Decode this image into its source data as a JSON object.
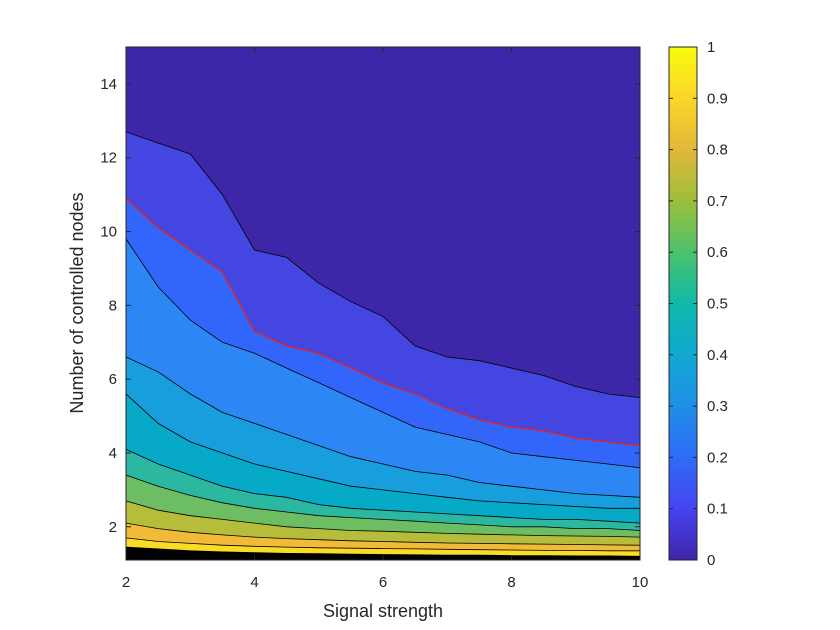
{
  "chart_data": {
    "type": "contour",
    "xlabel": "Signal strength",
    "ylabel": "Number of controlled nodes",
    "xlim": [
      2,
      10
    ],
    "ylim": [
      1.1,
      15
    ],
    "x_ticks": [
      2,
      4,
      6,
      8,
      10
    ],
    "y_ticks": [
      2,
      4,
      6,
      8,
      10,
      12,
      14
    ],
    "colorbar": {
      "range": [
        0,
        1
      ],
      "ticks": [
        0,
        0.1,
        0.2,
        0.3,
        0.4,
        0.5,
        0.6,
        0.7,
        0.8,
        0.9,
        1
      ],
      "tick_labels": [
        "0",
        "0.1",
        "0.2",
        "0.3",
        "0.4",
        "0.5",
        "0.6",
        "0.7",
        "0.8",
        "0.9",
        "1"
      ],
      "colormap": "parula"
    },
    "contour_fills": [
      "#3e26a8",
      "#4346e0",
      "#3266fb",
      "#2c87f5",
      "#189ddd",
      "#06aac6",
      "#2bb7a0",
      "#6dbe63",
      "#b6bd3a",
      "#f1ba38",
      "#f9dc26"
    ],
    "highlight_color": "#d9262d",
    "sample_x": [
      2,
      2.5,
      3,
      3.5,
      4,
      4.5,
      5,
      5.5,
      6,
      6.5,
      7,
      7.5,
      8,
      8.5,
      9,
      9.5,
      10
    ],
    "contours": [
      {
        "level": 0.05,
        "y": [
          12.7,
          12.4,
          12.1,
          11.0,
          9.5,
          9.3,
          8.6,
          8.1,
          7.7,
          6.9,
          6.6,
          6.5,
          6.3,
          6.1,
          5.8,
          5.6,
          5.5
        ]
      },
      {
        "level": 0.1,
        "y": [
          10.9,
          10.1,
          9.5,
          8.9,
          7.3,
          6.9,
          6.7,
          6.3,
          5.9,
          5.6,
          5.2,
          4.9,
          4.7,
          4.6,
          4.4,
          4.3,
          4.2
        ]
      },
      {
        "level": 0.15,
        "y": [
          9.8,
          8.5,
          7.6,
          7.0,
          6.7,
          6.3,
          5.9,
          5.5,
          5.1,
          4.7,
          4.5,
          4.3,
          4.0,
          3.9,
          3.8,
          3.7,
          3.6
        ]
      },
      {
        "level": 0.2,
        "y": [
          6.6,
          6.2,
          5.6,
          5.1,
          4.8,
          4.5,
          4.2,
          3.9,
          3.7,
          3.5,
          3.4,
          3.2,
          3.1,
          3.0,
          2.9,
          2.85,
          2.8
        ]
      },
      {
        "level": 0.3,
        "y": [
          5.6,
          4.8,
          4.3,
          4.0,
          3.7,
          3.5,
          3.3,
          3.1,
          3.0,
          2.9,
          2.8,
          2.7,
          2.65,
          2.6,
          2.55,
          2.5,
          2.5
        ]
      },
      {
        "level": 0.4,
        "y": [
          4.1,
          3.7,
          3.4,
          3.1,
          2.9,
          2.8,
          2.6,
          2.5,
          2.45,
          2.4,
          2.35,
          2.3,
          2.25,
          2.2,
          2.2,
          2.15,
          2.1
        ]
      },
      {
        "level": 0.5,
        "y": [
          3.4,
          3.1,
          2.85,
          2.65,
          2.5,
          2.4,
          2.3,
          2.25,
          2.2,
          2.15,
          2.1,
          2.05,
          2.0,
          2.0,
          1.95,
          1.95,
          1.9
        ]
      },
      {
        "level": 0.6,
        "y": [
          2.7,
          2.45,
          2.3,
          2.2,
          2.1,
          2.0,
          1.95,
          1.9,
          1.88,
          1.85,
          1.82,
          1.8,
          1.78,
          1.76,
          1.75,
          1.74,
          1.72
        ]
      },
      {
        "level": 0.7,
        "y": [
          2.1,
          1.95,
          1.85,
          1.78,
          1.72,
          1.68,
          1.65,
          1.62,
          1.6,
          1.58,
          1.56,
          1.55,
          1.54,
          1.53,
          1.52,
          1.51,
          1.5
        ]
      },
      {
        "level": 0.8,
        "y": [
          1.7,
          1.6,
          1.55,
          1.5,
          1.47,
          1.45,
          1.43,
          1.42,
          1.41,
          1.4,
          1.39,
          1.38,
          1.37,
          1.36,
          1.36,
          1.35,
          1.35
        ]
      },
      {
        "level": 0.9,
        "y": [
          1.45,
          1.4,
          1.35,
          1.32,
          1.3,
          1.28,
          1.27,
          1.26,
          1.25,
          1.24,
          1.23,
          1.23,
          1.22,
          1.22,
          1.21,
          1.21,
          1.2
        ]
      }
    ],
    "highlight_level": 0.1
  }
}
